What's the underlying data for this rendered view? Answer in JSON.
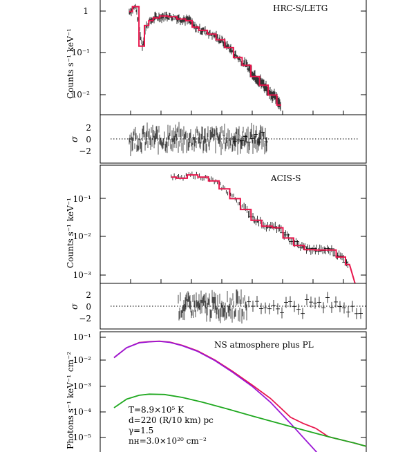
{
  "panels": {
    "hrc": {
      "label": "HRC-S/LETG",
      "ylabel": "Counts s⁻¹ keV⁻¹",
      "yticks": [
        "1",
        "10⁻¹",
        "10⁻²"
      ]
    },
    "hrc_resid": {
      "ylabel": "σ",
      "yticks": [
        "2",
        "0",
        "−2"
      ]
    },
    "acis": {
      "label": "ACIS-S",
      "ylabel": "Counts s⁻¹ keV⁻¹",
      "yticks": [
        "10⁻¹",
        "10⁻²",
        "10⁻³"
      ]
    },
    "acis_resid": {
      "ylabel": "σ",
      "yticks": [
        "2",
        "0",
        "−2"
      ]
    },
    "model": {
      "label": "NS atmosphere plus PL",
      "ylabel": "Photons s⁻¹ keV⁻¹ cm⁻²",
      "yticks": [
        "10⁻¹",
        "10⁻²",
        "10⁻³",
        "10⁻⁴",
        "10⁻⁵"
      ],
      "params": [
        "T=8.9×10⁵ K",
        "d=220 (R/10 km) pc",
        "γ=1.5",
        "nʜ=3.0×10²⁰ cm⁻²"
      ]
    }
  },
  "colors": {
    "model_fit": "#e8154b",
    "total": "#e8154b",
    "ns_atmosphere": "#9b17d6",
    "powerlaw": "#1fa81f",
    "data": "#000000"
  },
  "chart_data": [
    {
      "type": "line",
      "panel": "hrc",
      "yscale": "log",
      "ylim": [
        0.005,
        1.4
      ],
      "model": {
        "x_frac": [
          0.0,
          0.03,
          0.06,
          0.08,
          0.1,
          0.12,
          0.16,
          0.2,
          0.24,
          0.28,
          0.3,
          0.34,
          0.38,
          0.42,
          0.46,
          0.5,
          0.54,
          0.58,
          0.62,
          0.66,
          0.7
        ],
        "y": [
          0.75,
          0.95,
          0.14,
          0.38,
          0.48,
          0.55,
          0.6,
          0.58,
          0.52,
          0.48,
          0.35,
          0.3,
          0.25,
          0.19,
          0.13,
          0.08,
          0.055,
          0.032,
          0.021,
          0.013,
          0.008
        ]
      }
    },
    {
      "type": "scatter",
      "panel": "hrc_resid",
      "ylim": [
        -3,
        3
      ],
      "y_label_values": [
        2,
        0,
        -2
      ]
    },
    {
      "type": "line",
      "panel": "acis",
      "yscale": "log",
      "ylim": [
        0.0006,
        0.6
      ],
      "model": {
        "x_frac": [
          0.28,
          0.32,
          0.36,
          0.4,
          0.44,
          0.48,
          0.52,
          0.56,
          0.6,
          0.64,
          0.68,
          0.72,
          0.76,
          0.8,
          0.84,
          0.88,
          0.92,
          0.95
        ],
        "y": [
          0.3,
          0.28,
          0.34,
          0.3,
          0.24,
          0.15,
          0.085,
          0.045,
          0.024,
          0.017,
          0.0155,
          0.0085,
          0.0055,
          0.0043,
          0.0042,
          0.0042,
          0.0028,
          0.0018
        ]
      }
    },
    {
      "type": "scatter",
      "panel": "acis_resid",
      "ylim": [
        -3,
        3
      ],
      "y_label_values": [
        2,
        0,
        -2
      ]
    },
    {
      "type": "line",
      "panel": "model",
      "yscale": "log",
      "ylim": [
        4e-06,
        0.12
      ],
      "series": [
        {
          "name": "",
          "color_key": "ns_atmosphere",
          "x_frac": [
            0.0,
            0.05,
            0.1,
            0.14,
            0.18,
            0.22,
            0.27,
            0.33,
            0.4,
            0.47,
            0.55,
            0.62,
            0.7,
            0.76,
            0.8,
            0.83
          ],
          "y": [
            0.014,
            0.032,
            0.048,
            0.052,
            0.054,
            0.05,
            0.038,
            0.024,
            0.011,
            0.0042,
            0.00125,
            0.00035,
            6e-05,
            1.5e-05,
            6e-06,
            3e-06
          ]
        },
        {
          "name": "",
          "color_key": "powerlaw",
          "x_frac": [
            0.0,
            0.05,
            0.1,
            0.14,
            0.2,
            0.27,
            0.35,
            0.45,
            0.55,
            0.65,
            0.75,
            0.85,
            0.95,
            1.0
          ],
          "y": [
            0.00022,
            0.00045,
            0.00062,
            0.00068,
            0.00066,
            0.00052,
            0.00035,
            0.0002,
            0.00011,
            6.2e-05,
            3.5e-05,
            2e-05,
            1.2e-05,
            9e-06
          ]
        },
        {
          "name": "",
          "color_key": "total",
          "x_frac": [
            0.0,
            0.05,
            0.1,
            0.14,
            0.18,
            0.22,
            0.27,
            0.33,
            0.4,
            0.47,
            0.55,
            0.62,
            0.66,
            0.7,
            0.75,
            0.8,
            0.85,
            0.95,
            1.0
          ],
          "y": [
            0.014,
            0.032,
            0.049,
            0.053,
            0.055,
            0.051,
            0.039,
            0.025,
            0.0115,
            0.0045,
            0.0014,
            0.00048,
            0.00022,
            0.0001,
            6e-05,
            4e-05,
            2e-05,
            1.2e-05,
            9e-06
          ]
        }
      ]
    }
  ]
}
